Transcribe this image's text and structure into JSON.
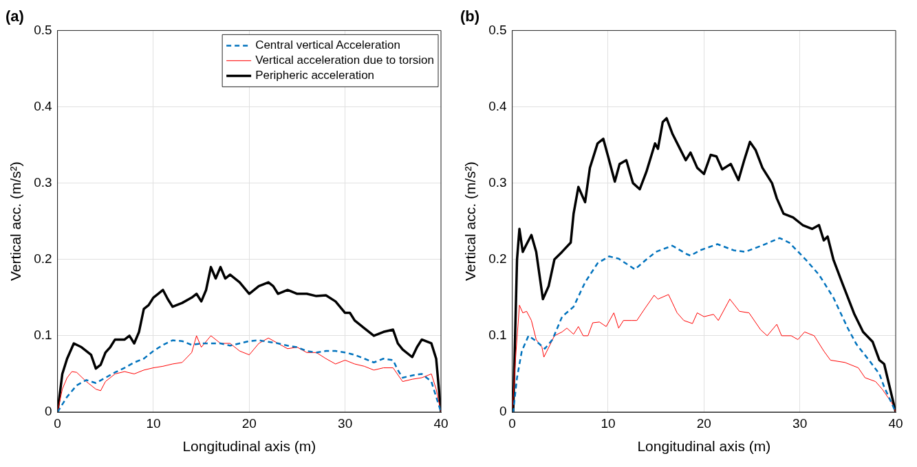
{
  "chart_data": [
    {
      "type": "line",
      "title": "(a)",
      "xlabel": "Longitudinal axis (m)",
      "ylabel": "Vertical acc. (m/s²)",
      "xlim": [
        0,
        40
      ],
      "xticks": [
        0,
        10,
        20,
        30,
        40
      ],
      "ylim": [
        0,
        0.5
      ],
      "yticks": [
        0,
        0.1,
        0.2,
        0.3,
        0.4,
        0.5
      ],
      "grid": true,
      "legend": "top right",
      "marker": "none",
      "series": [
        {
          "name": "Central vertical Acceleration",
          "color": "#0072bd",
          "line_style": "dashed",
          "x": [
            0,
            1,
            2,
            3,
            4,
            5,
            6,
            7,
            8,
            9,
            10,
            11,
            12,
            13,
            14,
            15,
            16,
            17,
            18,
            19,
            20,
            21,
            22,
            23,
            24,
            25,
            26,
            27,
            28,
            29,
            30,
            31,
            32,
            33,
            34,
            35,
            35.5,
            36,
            37,
            38,
            39,
            40
          ],
          "values": [
            0,
            0.02,
            0.035,
            0.042,
            0.038,
            0.045,
            0.052,
            0.058,
            0.065,
            0.07,
            0.08,
            0.088,
            0.094,
            0.093,
            0.088,
            0.09,
            0.09,
            0.09,
            0.087,
            0.09,
            0.093,
            0.094,
            0.092,
            0.09,
            0.087,
            0.085,
            0.08,
            0.078,
            0.08,
            0.08,
            0.078,
            0.075,
            0.07,
            0.065,
            0.07,
            0.068,
            0.055,
            0.045,
            0.048,
            0.05,
            0.04,
            0
          ]
        },
        {
          "name": "Vertical acceleration due to torsion",
          "color": "#ff0000",
          "line_style": "solid",
          "x": [
            0,
            0.5,
            1,
            1.5,
            2,
            3,
            4,
            4.5,
            5,
            6,
            7,
            8,
            9,
            10,
            11,
            12,
            13,
            14,
            14.5,
            15,
            16,
            17,
            18,
            19,
            20,
            21,
            22,
            23,
            24,
            25,
            26,
            27,
            28,
            29,
            30,
            31,
            32,
            33,
            34,
            35,
            36,
            37,
            38,
            39,
            39.5,
            40
          ],
          "values": [
            0,
            0.03,
            0.045,
            0.053,
            0.052,
            0.04,
            0.03,
            0.028,
            0.04,
            0.05,
            0.053,
            0.05,
            0.055,
            0.058,
            0.06,
            0.063,
            0.065,
            0.078,
            0.1,
            0.085,
            0.1,
            0.09,
            0.09,
            0.08,
            0.075,
            0.09,
            0.097,
            0.09,
            0.083,
            0.085,
            0.078,
            0.078,
            0.07,
            0.063,
            0.068,
            0.063,
            0.06,
            0.055,
            0.058,
            0.058,
            0.04,
            0.043,
            0.045,
            0.05,
            0.03,
            0
          ]
        },
        {
          "name": "Peripheric acceleration",
          "color": "#000000",
          "line_style": "solid",
          "x": [
            0,
            0.5,
            1,
            1.7,
            2.5,
            3.5,
            4,
            4.5,
            5,
            5.5,
            6,
            7,
            7.5,
            8,
            8.5,
            9,
            9.5,
            10,
            10.5,
            11,
            11.5,
            12,
            13,
            14,
            14.5,
            15,
            15.5,
            16,
            16.5,
            17,
            17.5,
            18,
            19,
            20,
            21,
            22,
            22.5,
            23,
            24,
            25,
            26,
            27,
            28,
            29,
            30,
            30.5,
            31,
            32,
            33,
            34,
            35,
            35.5,
            36,
            37,
            37.5,
            38,
            39,
            39.5,
            40
          ],
          "values": [
            0,
            0.05,
            0.07,
            0.09,
            0.085,
            0.075,
            0.057,
            0.062,
            0.078,
            0.085,
            0.095,
            0.095,
            0.1,
            0.09,
            0.105,
            0.135,
            0.14,
            0.15,
            0.155,
            0.16,
            0.148,
            0.138,
            0.143,
            0.15,
            0.155,
            0.145,
            0.16,
            0.19,
            0.175,
            0.19,
            0.175,
            0.18,
            0.17,
            0.155,
            0.165,
            0.17,
            0.165,
            0.155,
            0.16,
            0.155,
            0.155,
            0.152,
            0.153,
            0.145,
            0.13,
            0.13,
            0.12,
            0.11,
            0.1,
            0.105,
            0.108,
            0.09,
            0.082,
            0.072,
            0.085,
            0.095,
            0.09,
            0.07,
            0
          ]
        }
      ]
    },
    {
      "type": "line",
      "title": "(b)",
      "xlabel": "Longitudinal axis (m)",
      "ylabel": "Vertical acc. (m/s²)",
      "xlim": [
        0,
        40
      ],
      "xticks": [
        0,
        10,
        20,
        30,
        40
      ],
      "ylim": [
        0,
        0.5
      ],
      "yticks": [
        0,
        0.1,
        0.2,
        0.3,
        0.4,
        0.5
      ],
      "grid": true,
      "marker": "none",
      "series": [
        {
          "color": "#0072bd",
          "line_style": "dashed",
          "x": [
            0,
            0.1,
            0.5,
            1,
            1.7,
            2.5,
            3.4,
            4.2,
            5.2,
            6.4,
            7.6,
            8.9,
            10.1,
            11.1,
            12.8,
            14,
            15,
            16.7,
            18.2,
            18.6,
            19.6,
            21.4,
            23.1,
            24.3,
            26,
            27.9,
            28.9,
            30.6,
            32,
            33.5,
            35,
            35.9,
            37.4,
            38.3,
            38.8,
            40
          ],
          "values": [
            0,
            0,
            0.045,
            0.08,
            0.1,
            0.093,
            0.083,
            0.095,
            0.125,
            0.138,
            0.17,
            0.195,
            0.204,
            0.201,
            0.187,
            0.2,
            0.21,
            0.218,
            0.207,
            0.205,
            0.212,
            0.22,
            0.212,
            0.21,
            0.218,
            0.228,
            0.222,
            0.2,
            0.18,
            0.15,
            0.11,
            0.089,
            0.065,
            0.05,
            0.033,
            0
          ]
        },
        {
          "color": "#ff0000",
          "line_style": "solid",
          "x": [
            0,
            0.4,
            0.75,
            1.1,
            1.5,
            2,
            2.5,
            3.1,
            3.3,
            3.7,
            4.4,
            5.2,
            5.7,
            6.4,
            6.9,
            7.4,
            7.9,
            8.4,
            9.1,
            9.8,
            10.6,
            11.1,
            11.6,
            12.5,
            13,
            13.8,
            14.8,
            15.2,
            16.3,
            17.2,
            17.9,
            18.8,
            19.3,
            20,
            21,
            21.5,
            22.7,
            23.7,
            24.7,
            25.9,
            26.6,
            27.6,
            28.1,
            29.1,
            29.8,
            30.5,
            31.5,
            32.5,
            33.2,
            34.7,
            36.1,
            36.8,
            37.9,
            38.6,
            39.6,
            40
          ],
          "values": [
            0,
            0.08,
            0.14,
            0.13,
            0.132,
            0.12,
            0.095,
            0.085,
            0.072,
            0.082,
            0.1,
            0.105,
            0.11,
            0.102,
            0.112,
            0.1,
            0.1,
            0.117,
            0.118,
            0.112,
            0.13,
            0.11,
            0.12,
            0.12,
            0.12,
            0.135,
            0.153,
            0.148,
            0.154,
            0.13,
            0.12,
            0.116,
            0.13,
            0.125,
            0.128,
            0.12,
            0.148,
            0.132,
            0.13,
            0.108,
            0.1,
            0.115,
            0.1,
            0.1,
            0.095,
            0.105,
            0.1,
            0.08,
            0.068,
            0.065,
            0.058,
            0.045,
            0.04,
            0.03,
            0.012,
            0
          ]
        },
        {
          "color": "#000000",
          "line_style": "solid",
          "x": [
            0,
            0.1,
            0.5,
            0.75,
            1.1,
            1.5,
            2,
            2.5,
            3.2,
            3.8,
            4.4,
            5.2,
            6.1,
            6.4,
            6.9,
            7.6,
            8.1,
            8.9,
            9.5,
            10,
            10.7,
            11.2,
            11.9,
            12.6,
            13.3,
            14,
            14.9,
            15.2,
            15.7,
            16.1,
            16.7,
            17.5,
            18.1,
            18.6,
            19.3,
            20,
            20.7,
            21.3,
            21.9,
            22.8,
            23.6,
            24.2,
            24.8,
            25.4,
            26.1,
            27.1,
            27.6,
            28.3,
            29.3,
            30.3,
            31.3,
            32,
            32.5,
            32.9,
            33.5,
            34.4,
            35.7,
            36.6,
            37.6,
            38.3,
            38.8,
            40
          ],
          "values": [
            0,
            0,
            0.2,
            0.24,
            0.21,
            0.22,
            0.232,
            0.21,
            0.148,
            0.165,
            0.2,
            0.21,
            0.222,
            0.26,
            0.295,
            0.275,
            0.32,
            0.352,
            0.358,
            0.335,
            0.302,
            0.325,
            0.33,
            0.3,
            0.292,
            0.315,
            0.352,
            0.345,
            0.38,
            0.385,
            0.365,
            0.345,
            0.33,
            0.34,
            0.32,
            0.312,
            0.337,
            0.335,
            0.318,
            0.325,
            0.304,
            0.33,
            0.354,
            0.343,
            0.32,
            0.3,
            0.28,
            0.26,
            0.255,
            0.245,
            0.24,
            0.245,
            0.225,
            0.23,
            0.2,
            0.17,
            0.128,
            0.105,
            0.092,
            0.068,
            0.063,
            0
          ]
        }
      ]
    }
  ]
}
